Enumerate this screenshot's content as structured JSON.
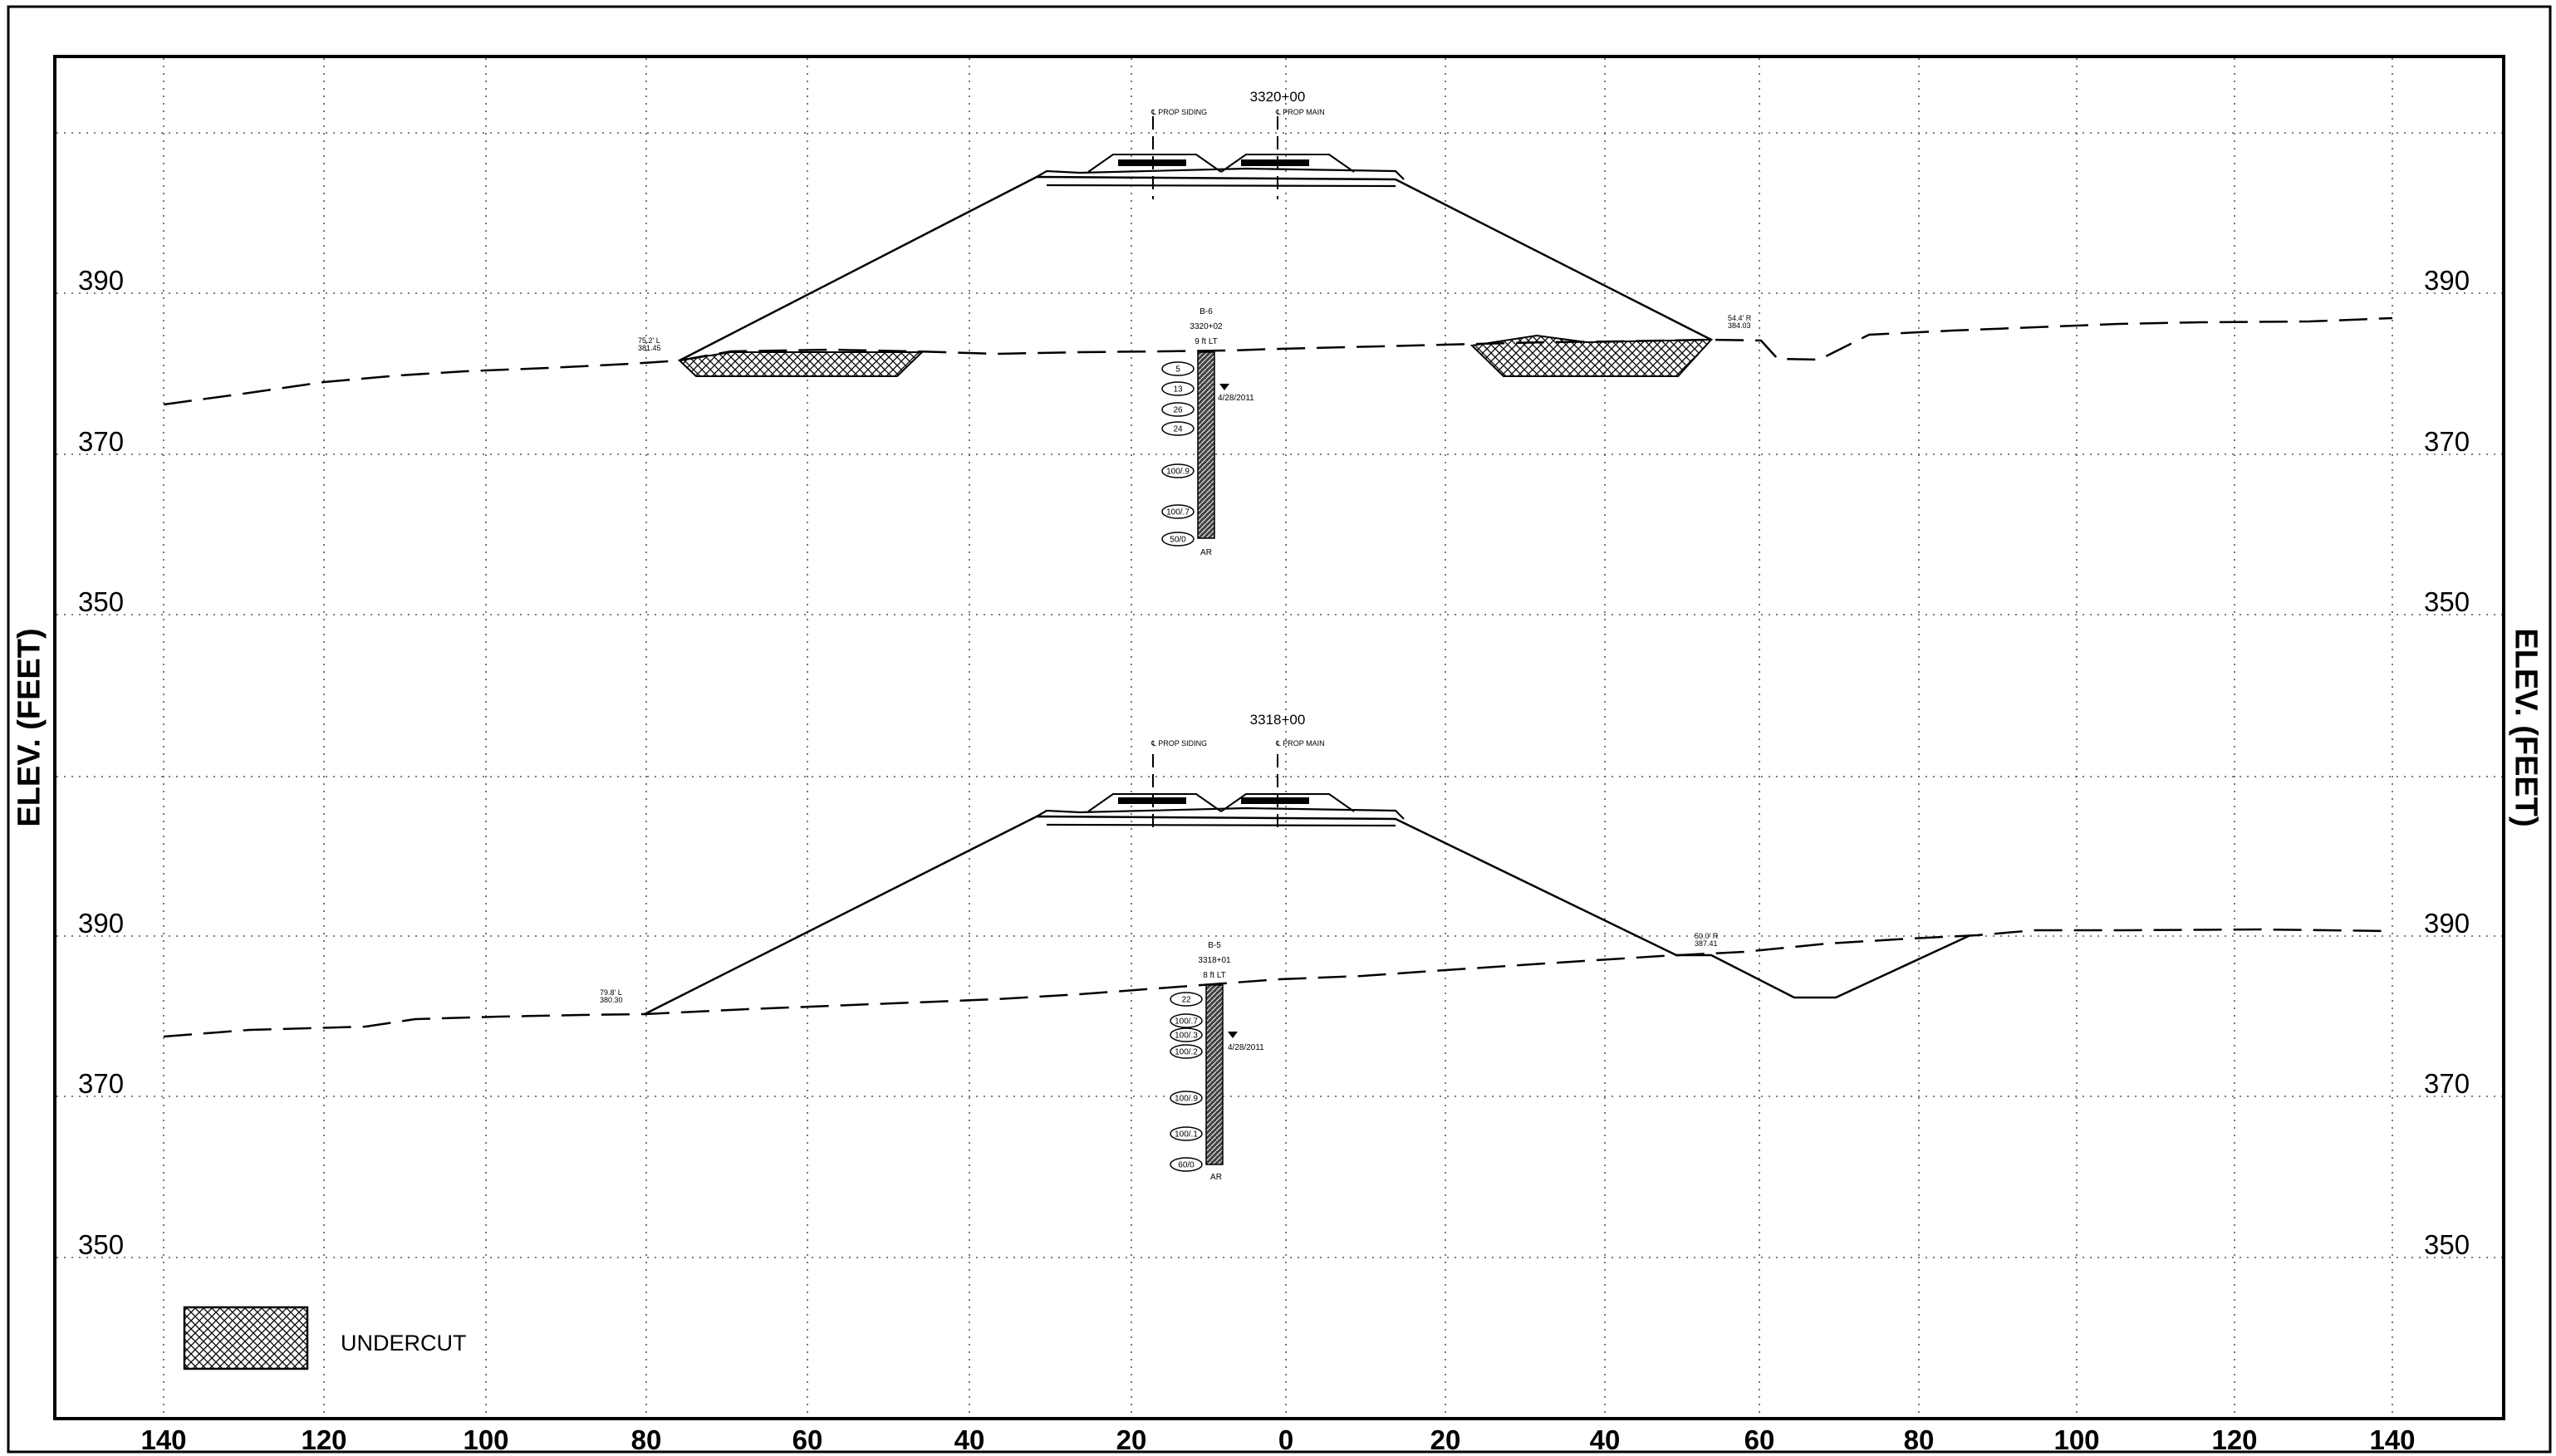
{
  "axis": {
    "y_label": "ELEV. (FEET)",
    "x_ticks": [
      "140",
      "120",
      "100",
      "80",
      "60",
      "40",
      "20",
      "0",
      "20",
      "40",
      "60",
      "80",
      "100",
      "120",
      "140"
    ],
    "y_ticks_upper": [
      "390",
      "370",
      "350"
    ],
    "y_ticks_lower": [
      "390",
      "370",
      "350"
    ]
  },
  "sections": [
    {
      "station": "3320+00",
      "siding_label": "℄ PROP SIDING",
      "main_label": "℄ PROP MAIN",
      "left_toe": {
        "offset": "75.2' L",
        "elev": "381.45"
      },
      "right_toe": {
        "offset": "54.4' R",
        "elev": "384.03"
      },
      "boring": {
        "id": "B-6",
        "station": "3320+02",
        "offset": "9 ft LT",
        "water_date": "4/28/2011",
        "bottom": "AR",
        "blows": [
          "5",
          "13",
          "26",
          "24",
          "100/.9",
          "100/.7",
          "50/0"
        ]
      }
    },
    {
      "station": "3318+00",
      "siding_label": "℄ PROP SIDING",
      "main_label": "℄ PROP MAIN",
      "left_toe": {
        "offset": "79.8' L",
        "elev": "380.30"
      },
      "right_toe": {
        "offset": "50.0' R",
        "elev": "387.41"
      },
      "boring": {
        "id": "B-5",
        "station": "3318+01",
        "offset": "8 ft LT",
        "water_date": "4/28/2011",
        "bottom": "AR",
        "blows": [
          "22",
          "100/.7",
          "100/.3",
          "100/.2",
          "100/.9",
          "100/.1",
          "60/0"
        ]
      }
    }
  ],
  "legend": {
    "label": "UNDERCUT"
  }
}
